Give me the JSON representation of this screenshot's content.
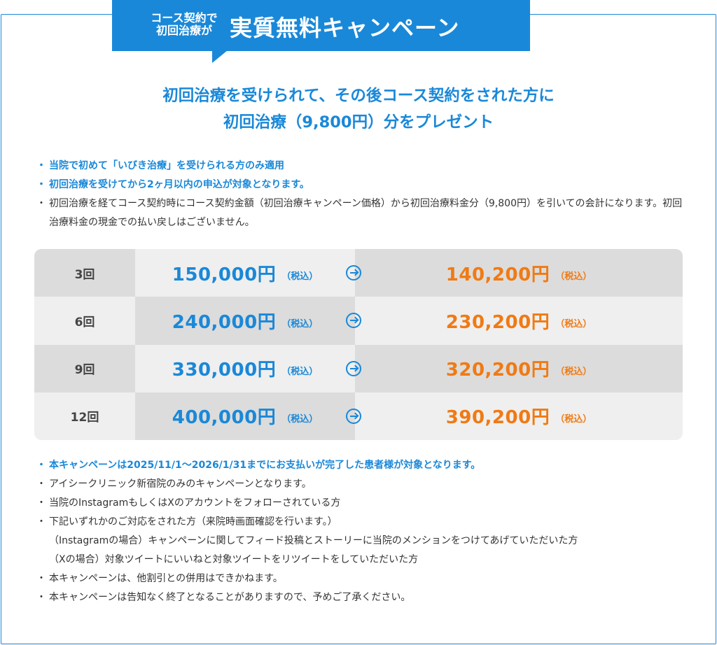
{
  "banner": {
    "small_line1": "コース契約で",
    "small_line2": "初回治療が",
    "title": "実質無料キャンペーン"
  },
  "headline": {
    "line1": "初回治療を受けられて、その後コース契約をされた方に",
    "line2": "初回治療（9,800円）分をプレゼント"
  },
  "notes_top": [
    {
      "text": "当院で初めて「いびき治療」を受けられる方のみ適用",
      "style": "hl"
    },
    {
      "text": "初回治療を受けてから2ヶ月以内の申込が対象となります。",
      "style": "hl"
    },
    {
      "text": "初回治療を経てコース契約時にコース契約金額（初回治療キャンペーン価格）から初回治療料金分（9,800円）を引いての会計になります。初回治療料金の現金での払い戻しはございません。",
      "style": "plain"
    }
  ],
  "bullet": "・",
  "price_rows": [
    {
      "count": "3回",
      "regular": "150,000円",
      "discounted": "140,200円"
    },
    {
      "count": "6回",
      "regular": "240,000円",
      "discounted": "230,200円"
    },
    {
      "count": "9回",
      "regular": "330,000円",
      "discounted": "320,200円"
    },
    {
      "count": "12回",
      "regular": "400,000円",
      "discounted": "390,200円"
    }
  ],
  "tax_label": "（税込）",
  "notes_bottom": [
    {
      "text": "本キャンペーンは2025/11/1〜2026/1/31までにお支払いが完了した患者様が対象となります。",
      "style": "hl"
    },
    {
      "text": "アイシークリニック新宿院のみのキャンペーンとなります。",
      "style": "plain"
    },
    {
      "text": "当院のInstagramもしくはXのアカウントをフォローされている方",
      "style": "plain"
    },
    {
      "text": "下記いずれかのご対応をされた方（来院時画面確認を行います。）",
      "style": "plain"
    },
    {
      "text": "（Instagramの場合）キャンペーンに関してフィード投稿とストーリーに当院のメンションをつけてあげていただいた方",
      "style": "sub"
    },
    {
      "text": "（Xの場合）対象ツイートにいいねと対象ツイートをリツイートをしていただいた方",
      "style": "sub"
    },
    {
      "text": "本キャンペーンは、他割引との併用はできかねます。",
      "style": "plain"
    },
    {
      "text": "本キャンペーンは告知なく終了となることがありますので、予めご了承ください。",
      "style": "plain"
    }
  ],
  "colors": {
    "accent": "#1a88d8",
    "discount": "#f07a14"
  }
}
